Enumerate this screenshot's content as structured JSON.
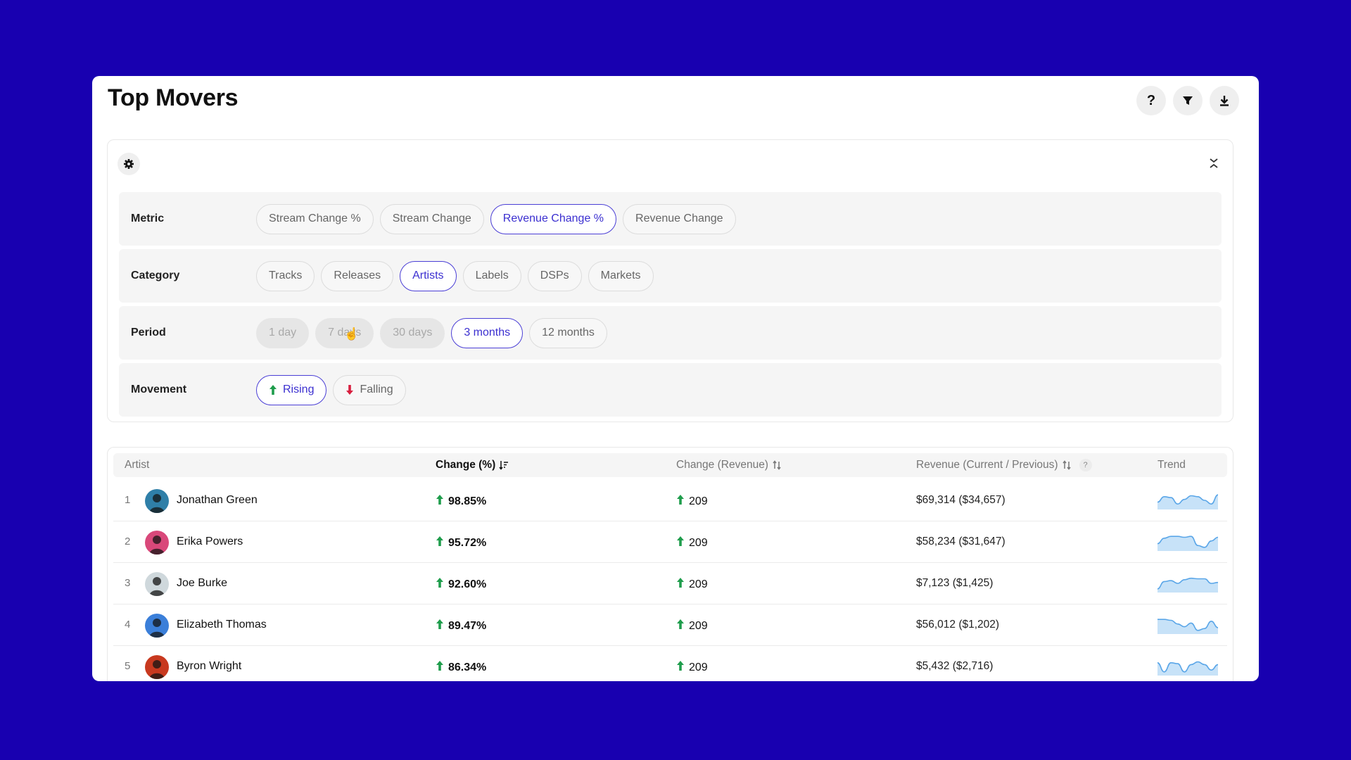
{
  "header": {
    "title": "Top Movers",
    "help_icon": "question-icon",
    "filter_icon": "funnel-icon",
    "download_icon": "download-icon"
  },
  "filters": {
    "settings_icon": "gear-icon",
    "collapse_icon": "collapse-icon",
    "metric": {
      "label": "Metric",
      "options": [
        "Stream Change %",
        "Stream Change",
        "Revenue Change %",
        "Revenue Change"
      ],
      "selected": "Revenue Change %"
    },
    "category": {
      "label": "Category",
      "options": [
        "Tracks",
        "Releases",
        "Artists",
        "Labels",
        "DSPs",
        "Markets"
      ],
      "selected": "Artists"
    },
    "period": {
      "label": "Period",
      "options": [
        "1 day",
        "7 days",
        "30 days",
        "3 months",
        "12 months"
      ],
      "disabled": [
        "1 day",
        "7 days",
        "30 days"
      ],
      "selected": "3 months"
    },
    "movement": {
      "label": "Movement",
      "options": [
        "Rising",
        "Falling"
      ],
      "selected": "Rising"
    }
  },
  "table": {
    "columns": {
      "artist": "Artist",
      "change_pct": "Change (%)",
      "change_rev": "Change (Revenue)",
      "revenue": "Revenue (Current / Previous)",
      "trend": "Trend"
    },
    "rows": [
      {
        "rank": "1",
        "name": "Jonathan Green",
        "change_pct": "98.85%",
        "change_rev": "209",
        "revenue": "$69,314 ($34,657)",
        "avatar_color": "#2f7fa8",
        "trend": [
          0.4,
          0.7,
          0.65,
          0.3,
          0.55,
          0.75,
          0.7,
          0.5,
          0.3,
          0.8
        ]
      },
      {
        "rank": "2",
        "name": "Erika Powers",
        "change_pct": "95.72%",
        "change_rev": "209",
        "revenue": "$58,234 ($31,647)",
        "avatar_color": "#d9487a",
        "trend": [
          0.4,
          0.7,
          0.8,
          0.8,
          0.75,
          0.8,
          0.3,
          0.2,
          0.55,
          0.75
        ]
      },
      {
        "rank": "3",
        "name": "Joe Burke",
        "change_pct": "92.60%",
        "change_rev": "209",
        "revenue": "$7,123 ($1,425)",
        "avatar_color": "#cfd8dc",
        "trend": [
          0.2,
          0.6,
          0.65,
          0.5,
          0.7,
          0.78,
          0.75,
          0.75,
          0.5,
          0.55
        ]
      },
      {
        "rank": "4",
        "name": "Elizabeth Thomas",
        "change_pct": "89.47%",
        "change_rev": "209",
        "revenue": "$56,012 ($1,202)",
        "avatar_color": "#3b7fd9",
        "trend": [
          0.8,
          0.8,
          0.75,
          0.55,
          0.4,
          0.6,
          0.2,
          0.3,
          0.7,
          0.35
        ]
      },
      {
        "rank": "5",
        "name": "Byron Wright",
        "change_pct": "86.34%",
        "change_rev": "209",
        "revenue": "$5,432 ($2,716)",
        "avatar_color": "#c8391f",
        "trend": [
          0.7,
          0.2,
          0.7,
          0.65,
          0.2,
          0.6,
          0.75,
          0.6,
          0.3,
          0.6
        ]
      }
    ]
  },
  "colors": {
    "background": "#1800B0",
    "accent": "#3b2fd0",
    "rising": "#1f9d4c",
    "falling": "#d81f3f",
    "trend_fill": "#c7e2f8",
    "trend_line": "#5aa6e8"
  }
}
